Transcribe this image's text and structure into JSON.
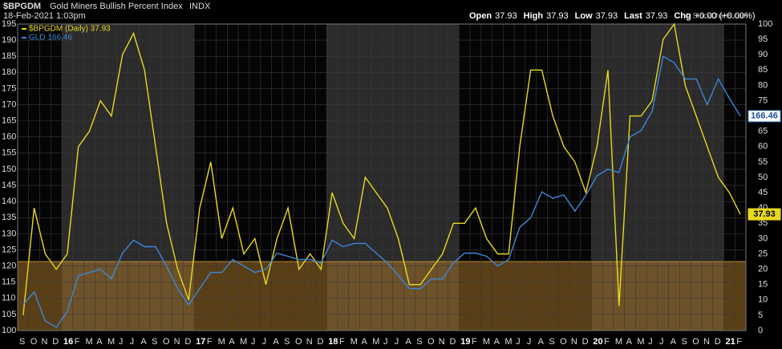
{
  "chart_data": {
    "type": "line",
    "title": "$BPGDM",
    "subtitle": "Gold Miners Bullish Percent Index",
    "exchange": "INDX",
    "date": "18-Feb-2021 1:03pm",
    "quote_labels": [
      "Open",
      "High",
      "Low",
      "Last",
      "Chg"
    ],
    "quote_values": [
      "37.93",
      "37.93",
      "37.93",
      "37.93",
      "+0.00 (+0.00%)"
    ],
    "watermark": "© StockCharts.com",
    "categories": [
      "S",
      "O",
      "N",
      "D",
      "16",
      "F",
      "M",
      "A",
      "M",
      "J",
      "J",
      "A",
      "S",
      "O",
      "N",
      "D",
      "17",
      "F",
      "M",
      "A",
      "M",
      "J",
      "J",
      "A",
      "S",
      "O",
      "N",
      "D",
      "18",
      "F",
      "M",
      "A",
      "M",
      "J",
      "J",
      "A",
      "S",
      "O",
      "N",
      "D",
      "19",
      "F",
      "M",
      "A",
      "M",
      "J",
      "J",
      "A",
      "S",
      "O",
      "N",
      "D",
      "20",
      "F",
      "M",
      "A",
      "M",
      "J",
      "J",
      "A",
      "S",
      "O",
      "N",
      "D",
      "21",
      "F"
    ],
    "series": [
      {
        "name": "$BPGDM (Daily) 37.93",
        "color": "#e8d820",
        "axis": "y2",
        "values": [
          5,
          40,
          25,
          20,
          25,
          60,
          65,
          75,
          70,
          90,
          97,
          85,
          60,
          35,
          20,
          10,
          40,
          55,
          30,
          40,
          25,
          30,
          15,
          30,
          40,
          20,
          25,
          20,
          45,
          35,
          30,
          50,
          45,
          40,
          30,
          15,
          15,
          20,
          25,
          35,
          35,
          40,
          30,
          25,
          25,
          60,
          85,
          85,
          70,
          60,
          55,
          45,
          60,
          85,
          8,
          70,
          70,
          75,
          95,
          100,
          80,
          70,
          60,
          50,
          45,
          37.93
        ]
      },
      {
        "name": "GLD 166.46",
        "color": "#3f86d8",
        "axis": "y",
        "values": [
          108,
          112,
          103,
          101,
          106,
          117,
          118,
          119,
          116,
          124,
          128,
          126,
          126,
          120,
          113,
          108,
          113,
          118,
          118,
          122,
          120,
          118,
          119,
          124,
          123,
          122,
          122,
          121,
          128,
          126,
          127,
          127,
          124,
          121,
          117,
          113,
          113,
          116,
          116,
          121,
          124,
          124,
          123,
          120,
          122,
          132,
          135,
          143,
          141,
          142,
          137,
          142,
          148,
          150,
          149,
          160,
          162,
          168,
          185,
          183,
          178,
          178,
          170,
          178,
          172,
          166.46
        ]
      }
    ],
    "ylim": [
      100,
      195
    ],
    "yticks": [
      100,
      105,
      110,
      115,
      120,
      125,
      130,
      135,
      140,
      145,
      150,
      155,
      160,
      165,
      170,
      175,
      180,
      185,
      190,
      195
    ],
    "y2lim": [
      0,
      100
    ],
    "y2ticks": [
      0,
      5,
      10,
      15,
      20,
      25,
      30,
      35,
      40,
      45,
      50,
      55,
      60,
      65,
      70,
      75,
      80,
      85,
      90,
      95,
      100
    ],
    "grid": true
  }
}
